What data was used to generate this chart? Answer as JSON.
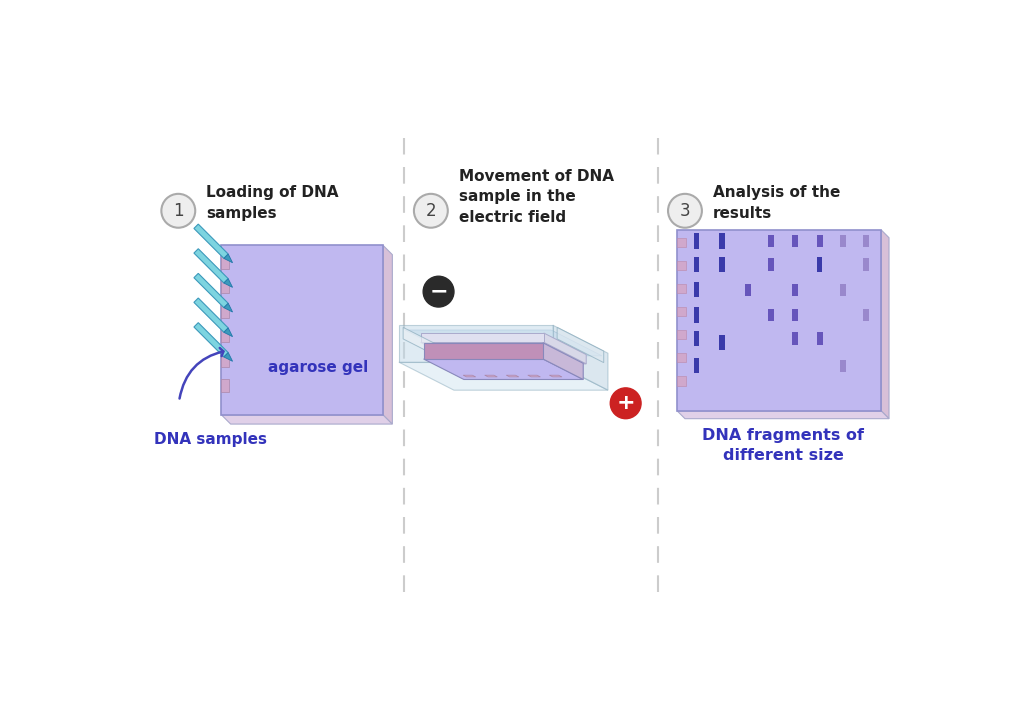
{
  "bg_color": "#ffffff",
  "panel1": {
    "step_num": "1",
    "title_line1": "Loading of DNA",
    "title_line2": "samples",
    "gel_color": "#c0b8f0",
    "gel_side_color": "#d8c0d8",
    "gel_bottom_color": "#e0d0e8",
    "well_color": "#d0a8cc",
    "label_gel": "agarose gel",
    "label_samples": "DNA samples",
    "pipette_body": "#7dd4e0",
    "pipette_tip": "#3c99bb",
    "arrow_color": "#4444bb"
  },
  "panel2": {
    "step_num": "2",
    "title_line1": "Movement of DNA",
    "title_line2": "sample in the",
    "title_line3": "electric field",
    "neg_color": "#2a2a2a",
    "pos_color": "#cc2222",
    "box_outer_top": "#d0e4f0",
    "box_outer_right": "#b8d0e0",
    "box_outer_front": "#c0d8e8",
    "box_outer_edge": "#88aabb",
    "gel_top": "#c0b8f0",
    "gel_right": "#c8b8d8",
    "gel_front": "#c090b8",
    "gel_edge": "#8888bb",
    "well_strip": "#d0a8cc",
    "water_color": "#c0d8ec",
    "platform_color": "#e8e8f0",
    "platform_edge": "#aaaacc"
  },
  "panel3": {
    "step_num": "3",
    "title_line1": "Analysis of the",
    "title_line2": "results",
    "gel_color": "#c0b8f0",
    "gel_side_color": "#d8c0d8",
    "gel_bottom_color": "#e0d0e8",
    "well_color": "#d0a8cc",
    "band_dark": "#3a3aaa",
    "band_med": "#6655bb",
    "band_light": "#9988cc",
    "label": "DNA fragments of\ndifferent size",
    "label_color": "#3333bb"
  },
  "step_circle_bg": "#eeeeee",
  "step_circle_edge": "#aaaaaa",
  "step_num_color": "#444444",
  "title_color": "#222222",
  "label_blue": "#3333bb",
  "divider_color": "#cccccc",
  "gel_main_color": "#c0b8f0",
  "gel_side_color": "#d8c0d8",
  "gel_bot_color": "#e0d0e8"
}
